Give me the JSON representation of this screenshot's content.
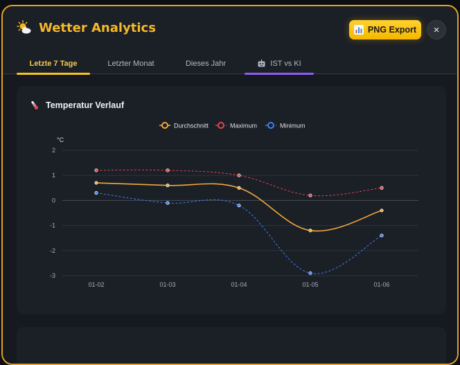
{
  "header": {
    "title": "Wetter Analytics",
    "export_label": "PNG Export",
    "close_label": "×"
  },
  "tabs": [
    {
      "label": "Letzte 7 Tage",
      "active": true
    },
    {
      "label": "Letzter Monat",
      "active": false
    },
    {
      "label": "Dieses Jahr",
      "active": false
    },
    {
      "label": "IST vs KI",
      "active": false,
      "icon": "robot-icon"
    }
  ],
  "colors": {
    "accent": "#f5b82a",
    "avg": "#f2a93b",
    "max": "#e0474f",
    "min": "#3b82f6",
    "ai_tab": "#8b5cf6"
  },
  "card": {
    "title": "Temperatur Verlauf"
  },
  "chart_data": {
    "type": "line",
    "categories": [
      "01-02",
      "01-03",
      "01-04",
      "01-05",
      "01-06"
    ],
    "ylabel": "°C",
    "ylim": [
      -3,
      2
    ],
    "yticks": [
      2,
      1,
      0,
      -1,
      -2,
      -3
    ],
    "grid": true,
    "legend": "top",
    "series": [
      {
        "name": "Durchschnitt",
        "values": [
          0.7,
          0.6,
          0.5,
          -1.2,
          -0.4
        ],
        "color": "#f2a93b",
        "dashed": false
      },
      {
        "name": "Maximum",
        "values": [
          1.2,
          1.2,
          1.0,
          0.2,
          0.5
        ],
        "color": "#e0474f",
        "dashed": true
      },
      {
        "name": "Minimum",
        "values": [
          0.3,
          -0.1,
          -0.2,
          -2.9,
          -1.4
        ],
        "color": "#3b82f6",
        "dashed": true
      }
    ]
  }
}
